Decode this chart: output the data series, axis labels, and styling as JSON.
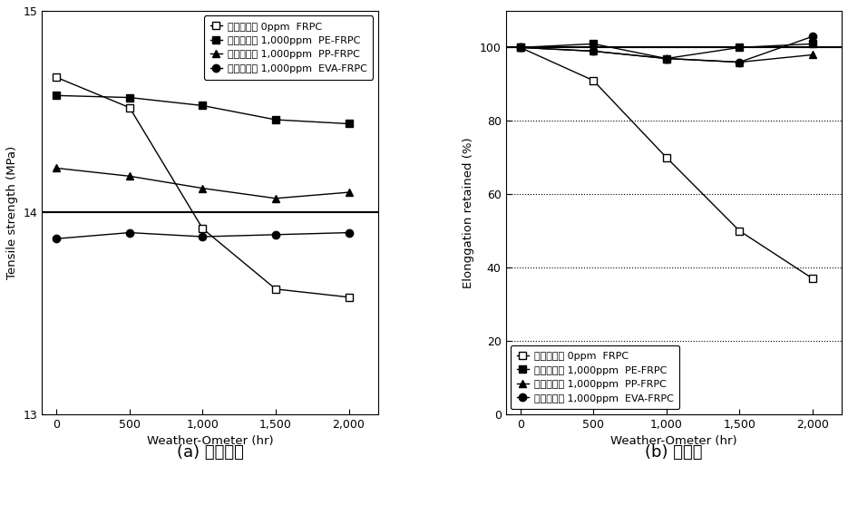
{
  "left": {
    "title_korean": "(a) 인장강도",
    "title_roman": "(a)",
    "xlabel": "Weather-Ometer (hr)",
    "ylabel": "Tensile strength (MPa)",
    "ylim": [
      13,
      15
    ],
    "yticks": [
      13,
      14,
      15
    ],
    "xlim": [
      -100,
      2200
    ],
    "xticks": [
      0,
      500,
      1000,
      1500,
      2000
    ],
    "hline": 14.0,
    "series": [
      {
        "label": "산화방지제 0ppm  FRPC",
        "x": [
          0,
          500,
          1000,
          1500,
          2000
        ],
        "y": [
          14.67,
          14.52,
          13.92,
          13.62,
          13.58
        ],
        "marker": "s",
        "markerfacecolor": "white",
        "markeredgecolor": "black",
        "color": "black",
        "markersize": 6
      },
      {
        "label": "산화방지제 1,000ppm  PE-FRPC",
        "x": [
          0,
          500,
          1000,
          1500,
          2000
        ],
        "y": [
          14.58,
          14.57,
          14.53,
          14.46,
          14.44
        ],
        "marker": "s",
        "markerfacecolor": "black",
        "markeredgecolor": "black",
        "color": "black",
        "markersize": 6
      },
      {
        "label": "산화방지제 1,000ppm  PP-FRPC",
        "x": [
          0,
          500,
          1000,
          1500,
          2000
        ],
        "y": [
          14.22,
          14.18,
          14.12,
          14.07,
          14.1
        ],
        "marker": "^",
        "markerfacecolor": "black",
        "markeredgecolor": "black",
        "color": "black",
        "markersize": 6
      },
      {
        "label": "산화방지제 1,000ppm  EVA-FRPC",
        "x": [
          0,
          500,
          1000,
          1500,
          2000
        ],
        "y": [
          13.87,
          13.9,
          13.88,
          13.89,
          13.9
        ],
        "marker": "o",
        "markerfacecolor": "black",
        "markeredgecolor": "black",
        "color": "black",
        "markersize": 6
      }
    ]
  },
  "right": {
    "title_korean": "(b) 신장률",
    "title_roman": "(b)",
    "xlabel": "Weather-Ometer (hr)",
    "ylabel": "Elonggation retained (%)",
    "ylim": [
      0,
      110
    ],
    "yticks": [
      0,
      20,
      40,
      60,
      80,
      100
    ],
    "xlim": [
      -100,
      2200
    ],
    "xticks": [
      0,
      500,
      1000,
      1500,
      2000
    ],
    "hline": 100.0,
    "series": [
      {
        "label": "산화방지제 0ppm  FRPC",
        "x": [
          0,
          500,
          1000,
          1500,
          2000
        ],
        "y": [
          100,
          91,
          70,
          50,
          37
        ],
        "marker": "s",
        "markerfacecolor": "white",
        "markeredgecolor": "black",
        "color": "black",
        "markersize": 6
      },
      {
        "label": "산화방지제 1,000ppm  PE-FRPC",
        "x": [
          0,
          500,
          1000,
          1500,
          2000
        ],
        "y": [
          100,
          101,
          97,
          100,
          101
        ],
        "marker": "s",
        "markerfacecolor": "black",
        "markeredgecolor": "black",
        "color": "black",
        "markersize": 6
      },
      {
        "label": "산화방지제 1,000ppm  PP-FRPC",
        "x": [
          0,
          500,
          1000,
          1500,
          2000
        ],
        "y": [
          100,
          99,
          97,
          96,
          98
        ],
        "marker": "^",
        "markerfacecolor": "black",
        "markeredgecolor": "black",
        "color": "black",
        "markersize": 6
      },
      {
        "label": "산화방지제 1,000ppm  EVA-FRPC",
        "x": [
          0,
          500,
          1000,
          1500,
          2000
        ],
        "y": [
          100,
          99,
          97,
          96,
          103
        ],
        "marker": "o",
        "markerfacecolor": "black",
        "markeredgecolor": "black",
        "color": "black",
        "markersize": 6
      }
    ]
  },
  "background_color": "#ffffff"
}
